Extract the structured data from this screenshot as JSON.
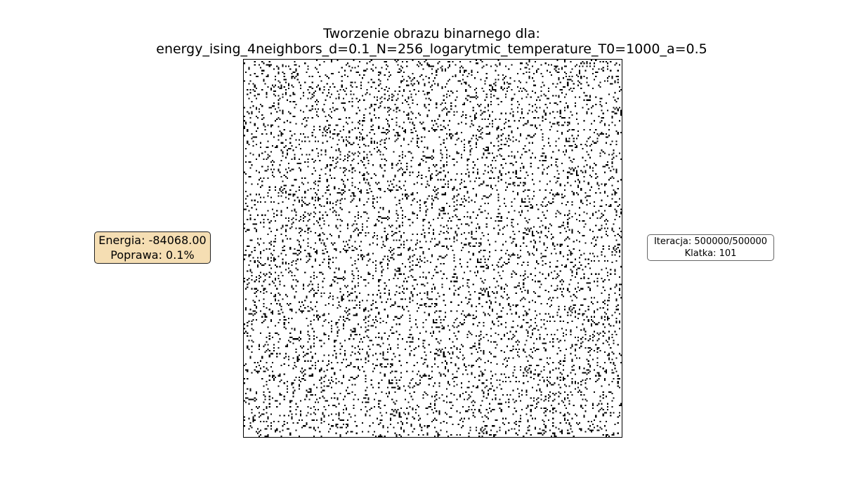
{
  "title": {
    "line1": "Tworzenie obrazu binarnego dla:",
    "line2": "energy_ising_4neighbors_d=0.1_N=256_logarytmic_temperature_T0=1000_a=0.5"
  },
  "image": {
    "grid_size": 256,
    "density": 0.1,
    "foreground_color": "#000000",
    "background_color": "#ffffff"
  },
  "energy_box": {
    "energy_text": "Energia: -84068.00",
    "improvement_text": "Poprawa: 0.1%",
    "background_color": "#f5deb3"
  },
  "iteration_box": {
    "iteration_text": "Iteracja: 500000/500000",
    "frame_text": "Klatka: 101"
  }
}
